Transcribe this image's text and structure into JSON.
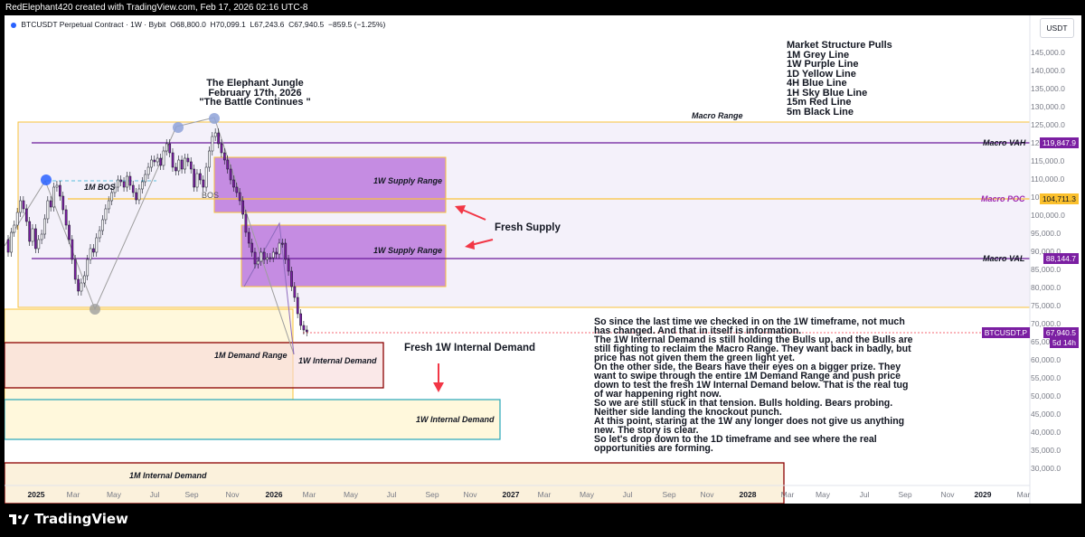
{
  "header": {
    "text": "RedElephant420 created with TradingView.com, Feb 17, 2026 02:16 UTC-8"
  },
  "legend": {
    "symbol": "BTCUSDT Perpetual Contract · 1W · Bybit",
    "o": "O68,800.0",
    "h": "H70,099.1",
    "l": "L67,243.6",
    "c": "C67,940.5",
    "change": "−859.5 (−1.25%)"
  },
  "currency": "USDT",
  "title": {
    "line1": "The Elephant Jungle",
    "line2": "February 17th, 2026",
    "line3": "\"The Battle Continues \""
  },
  "structure": {
    "heading": "Market Structure Pulls",
    "items": [
      "1M Grey Line",
      "1W Purple Line",
      "1D Yellow Line",
      "4H Blue Line",
      "1H Sky Blue Line",
      "15m Red Line",
      "5m Black Line"
    ]
  },
  "labels": {
    "macro_range": "Macro Range",
    "macro_vah": "Macro VAH",
    "macro_poc": "Macro POC",
    "macro_val": "Macro VAL",
    "supply1": "1W Supply Range",
    "supply2": "1W Supply Range",
    "fresh_supply": "Fresh Supply",
    "m1_bos": "1M BOS",
    "bos": "BOS",
    "demand_1m_range": "1M Demand Range",
    "internal_1w_a": "1W Internal Demand",
    "internal_1w_b": "1W Internal Demand",
    "fresh_internal": "Fresh 1W Internal Demand",
    "internal_1m": "1M Internal Demand"
  },
  "commentary": [
    "So since the last time we checked in on the 1W timeframe, not much",
    "has changed. And that in itself is information.",
    "The 1W Internal Demand is still holding the Bulls up, and the Bulls are",
    "still fighting to reclaim the Macro Range. They want back in badly, but",
    "price has not given them the green light yet.",
    "On the other side, the Bears have their eyes on a bigger prize. They",
    "want to swipe through the entire 1M Demand Range and push price",
    "down to test the fresh 1W Internal Demand below. That is the real tug",
    "of war happening right now.",
    "So we are still stuck in that tension. Bulls holding. Bears probing.",
    "Neither side landing the knockout punch.",
    "At this point, staring at the 1W any longer does not give us anything",
    "new. The story is clear.",
    "So let's drop down to the 1D timeframe and see where the real",
    "opportunities are forming."
  ],
  "price_axis": [
    "145,000.0",
    "140,000.0",
    "135,000.0",
    "130,000.0",
    "125,000.0",
    "120,000.0",
    "115,000.0",
    "110,000.0",
    "105,000.0",
    "100,000.0",
    "95,000.0",
    "90,000.0",
    "85,000.0",
    "80,000.0",
    "75,000.0",
    "70,000.0",
    "65,000.0",
    "60,000.0",
    "55,000.0",
    "50,000.0",
    "45,000.0",
    "40,000.0",
    "35,000.0",
    "30,000.0"
  ],
  "price_tags": {
    "vah": "119,847.9",
    "poc": "104,711.3",
    "val": "88,144.7",
    "sym": "BTCUSDT.P",
    "last": "67,940.5",
    "countdown": "5d 14h"
  },
  "time_axis": [
    "2025",
    "Mar",
    "May",
    "Jul",
    "Sep",
    "Nov",
    "2026",
    "Mar",
    "May",
    "Jul",
    "Sep",
    "Nov",
    "2027",
    "Mar",
    "May",
    "Jul",
    "Sep",
    "Nov",
    "2028",
    "Mar",
    "May",
    "Jul",
    "Sep",
    "Nov",
    "2029",
    "Mar"
  ],
  "colors": {
    "up": "#ffffff",
    "down": "#7b1fa2",
    "supply": "#ab47bc",
    "macro": "#ffe082",
    "vah": "#7b1fa2",
    "poc": "#fbc02d",
    "arrow": "#f23645"
  },
  "brand": "TradingView"
}
